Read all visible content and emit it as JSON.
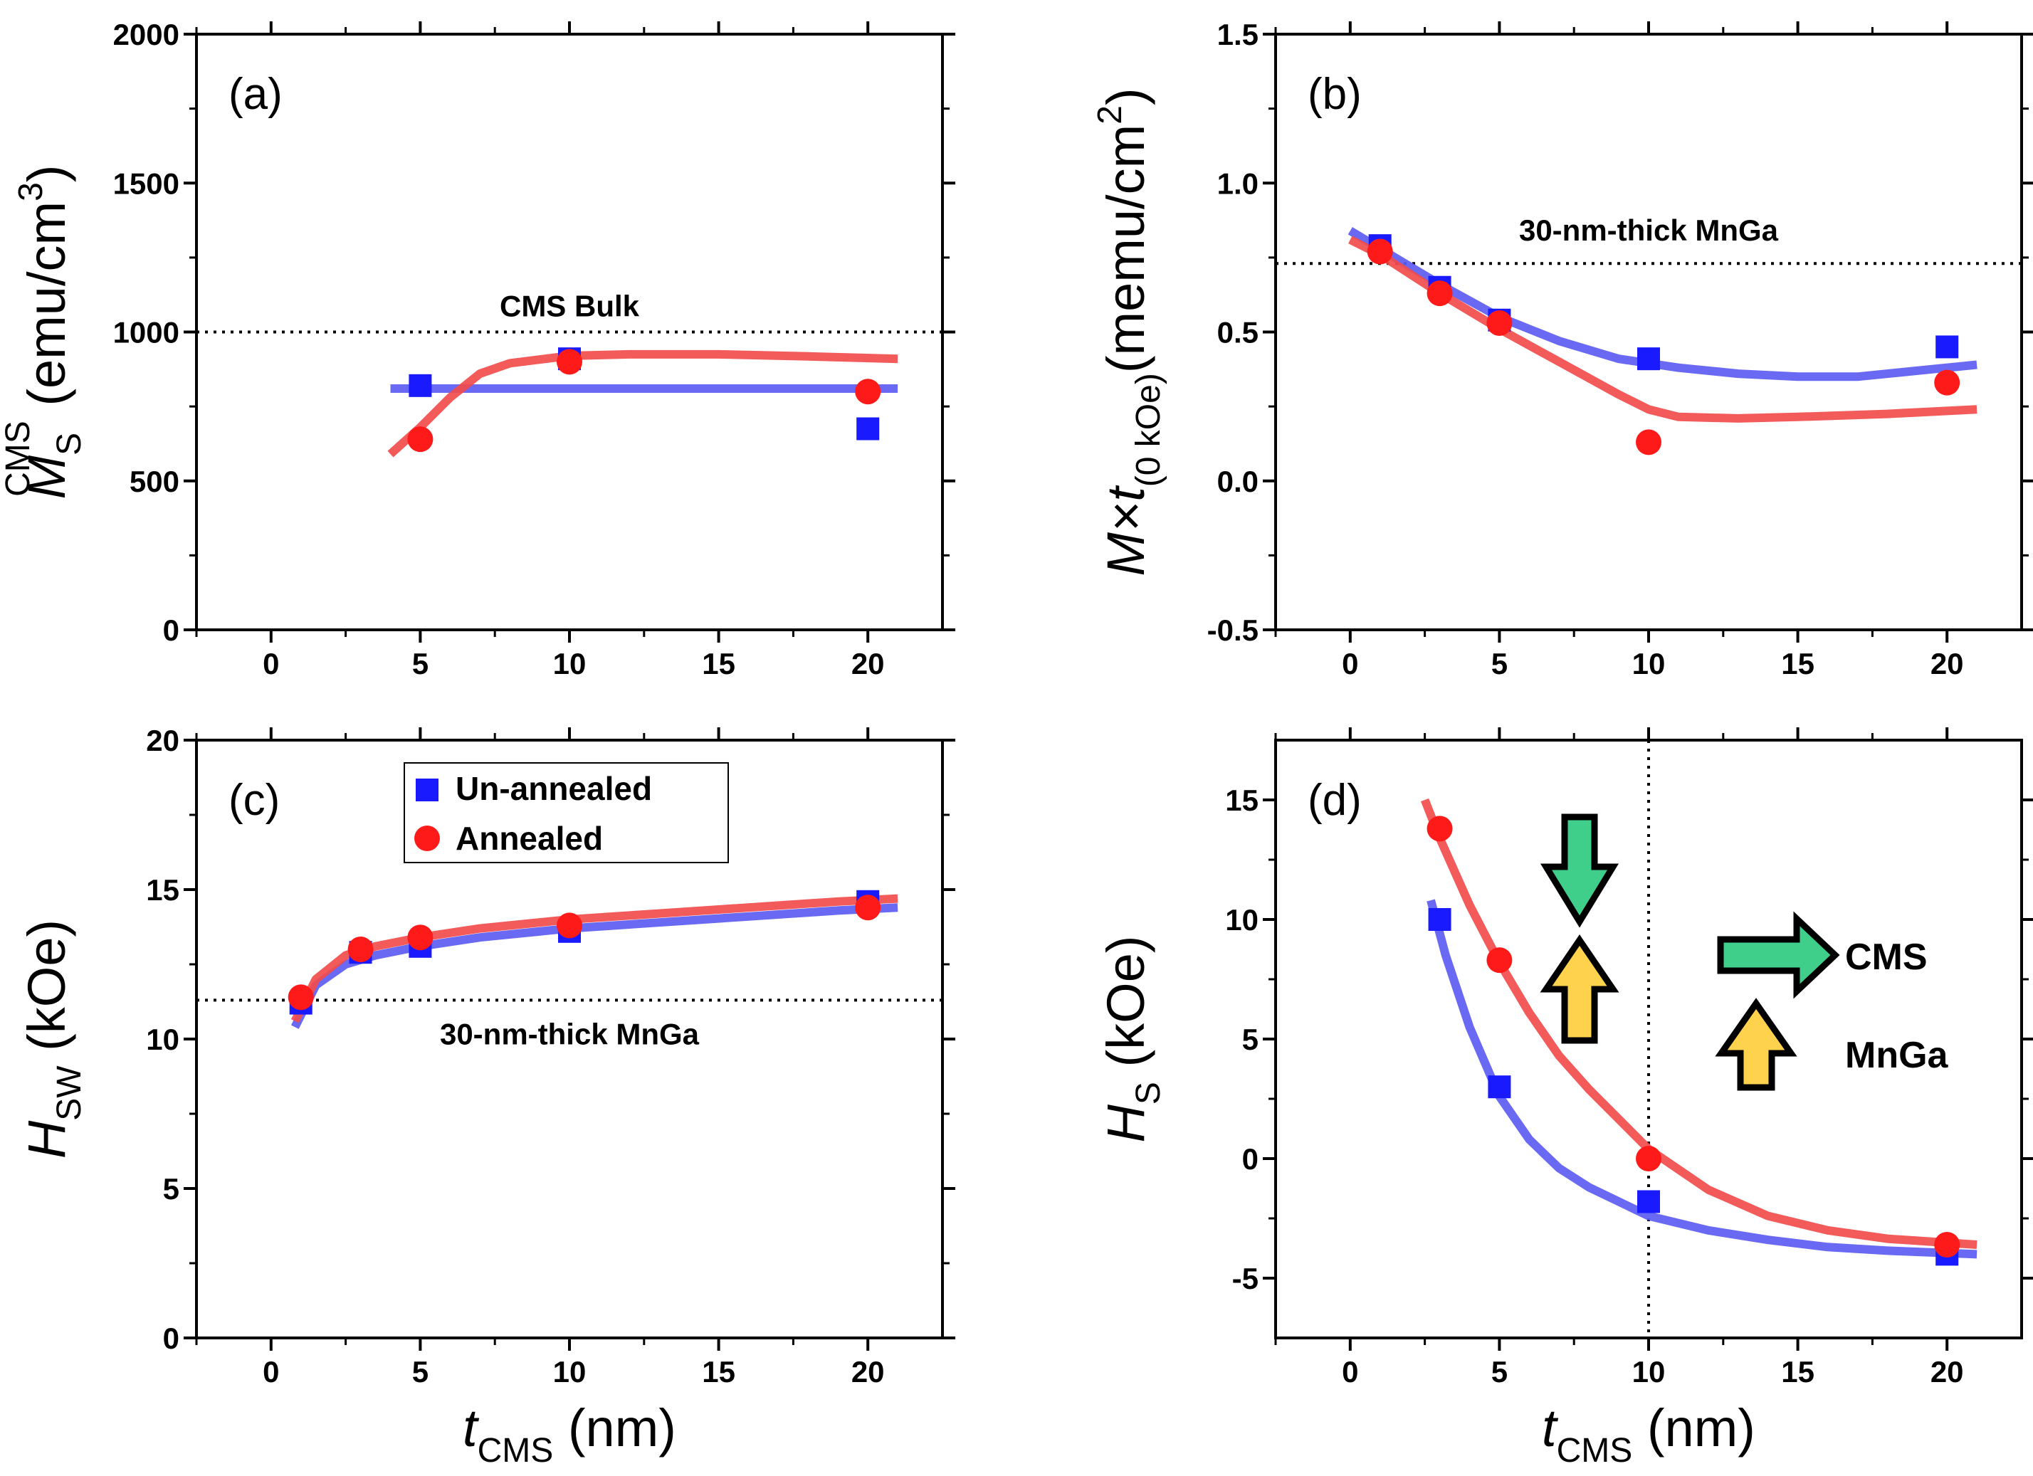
{
  "colors": {
    "unannealed": "#1a1aff",
    "annealed": "#ff1a1a",
    "fit_unannealed": "#5c5cf2",
    "fit_annealed": "#f24c4c",
    "arrow_green": "#3fcf8a",
    "arrow_yellow": "#ffd24d"
  },
  "legend": {
    "unannealed_label": "Un-annealed",
    "annealed_label": "Annealed"
  },
  "chart_data": [
    {
      "id": "a",
      "type": "scatter",
      "panel_label": "(a)",
      "xlim": [
        -2.5,
        22.5
      ],
      "ylim": [
        0,
        2000
      ],
      "xticks": [
        "0",
        "5",
        "10",
        "15",
        "20"
      ],
      "xtick_values": [
        0,
        5,
        10,
        15,
        20
      ],
      "yticks": [
        "0",
        "500",
        "1000",
        "1500",
        "2000"
      ],
      "ytick_values": [
        0,
        500,
        1000,
        1500,
        2000
      ],
      "ylabel": {
        "main": "M",
        "sub": "S",
        "sup": "CMS",
        "unit": " (emu/cm",
        "unit_sup": "3",
        "unit_close": ")"
      },
      "reference": {
        "y": 1000,
        "label": "CMS Bulk"
      },
      "series": [
        {
          "name": "Un-annealed",
          "marker": "square",
          "x": [
            5,
            10,
            20
          ],
          "y": [
            820,
            910,
            675
          ]
        },
        {
          "name": "Annealed",
          "marker": "circle",
          "x": [
            5,
            10,
            20
          ],
          "y": [
            640,
            900,
            800
          ]
        }
      ],
      "fits": [
        {
          "name": "Un-annealed",
          "x": [
            4,
            21
          ],
          "y": [
            810,
            810
          ]
        },
        {
          "name": "Annealed",
          "x": [
            4,
            5,
            6,
            7,
            8,
            10,
            12,
            15,
            18,
            21
          ],
          "y": [
            590,
            680,
            780,
            860,
            895,
            920,
            925,
            925,
            918,
            910
          ]
        }
      ]
    },
    {
      "id": "b",
      "type": "scatter",
      "panel_label": "(b)",
      "xlim": [
        -2.5,
        22.5
      ],
      "ylim": [
        -0.5,
        1.5
      ],
      "xticks": [
        "0",
        "5",
        "10",
        "15",
        "20"
      ],
      "xtick_values": [
        0,
        5,
        10,
        15,
        20
      ],
      "yticks": [
        "-0.5",
        "0.0",
        "0.5",
        "1.0",
        "1.5"
      ],
      "ytick_values": [
        -0.5,
        0.0,
        0.5,
        1.0,
        1.5
      ],
      "ylabel": {
        "main": "M×t",
        "sub": "(0 kOe)",
        "unit": "(memu/cm",
        "unit_sup": "2",
        "unit_close": ")"
      },
      "reference": {
        "y": 0.73,
        "label": "30-nm-thick MnGa"
      },
      "series": [
        {
          "name": "Un-annealed",
          "marker": "square",
          "x": [
            1,
            3,
            5,
            10,
            20
          ],
          "y": [
            0.79,
            0.65,
            0.54,
            0.41,
            0.45
          ]
        },
        {
          "name": "Annealed",
          "marker": "circle",
          "x": [
            1,
            3,
            5,
            10,
            20
          ],
          "y": [
            0.77,
            0.63,
            0.53,
            0.13,
            0.33
          ]
        }
      ],
      "fits": [
        {
          "name": "Un-annealed",
          "x": [
            0,
            1,
            3,
            5,
            7,
            9,
            11,
            13,
            15,
            17,
            19,
            21
          ],
          "y": [
            0.84,
            0.78,
            0.66,
            0.55,
            0.47,
            0.41,
            0.38,
            0.36,
            0.35,
            0.35,
            0.37,
            0.39
          ]
        },
        {
          "name": "Annealed",
          "x": [
            0,
            1,
            3,
            5,
            7,
            9,
            10,
            11,
            13,
            15,
            18,
            21
          ],
          "y": [
            0.81,
            0.76,
            0.63,
            0.51,
            0.4,
            0.29,
            0.24,
            0.215,
            0.21,
            0.215,
            0.225,
            0.24
          ]
        }
      ]
    },
    {
      "id": "c",
      "type": "scatter",
      "panel_label": "(c)",
      "xlim": [
        -2.5,
        22.5
      ],
      "ylim": [
        0,
        20
      ],
      "xticks": [
        "0",
        "5",
        "10",
        "15",
        "20"
      ],
      "xtick_values": [
        0,
        5,
        10,
        15,
        20
      ],
      "yticks": [
        "0",
        "5",
        "10",
        "15",
        "20"
      ],
      "ytick_values": [
        0,
        5,
        10,
        15,
        20
      ],
      "xlabel": {
        "main": "t",
        "sub": "CMS",
        "unit": " (nm)"
      },
      "ylabel": {
        "main": "H",
        "sub": "SW",
        "unit": " (kOe)"
      },
      "reference": {
        "y": 11.3,
        "label": "30-nm-thick MnGa"
      },
      "series": [
        {
          "name": "Un-annealed",
          "marker": "square",
          "x": [
            1,
            3,
            5,
            10,
            20
          ],
          "y": [
            11.2,
            12.9,
            13.1,
            13.6,
            14.6
          ]
        },
        {
          "name": "Annealed",
          "marker": "circle",
          "x": [
            1,
            3,
            5,
            10,
            20
          ],
          "y": [
            11.4,
            13.0,
            13.4,
            13.8,
            14.4
          ]
        }
      ],
      "fits": [
        {
          "name": "Un-annealed",
          "x": [
            0.8,
            1.5,
            2.5,
            3.5,
            5,
            7,
            10,
            13,
            16,
            19,
            21
          ],
          "y": [
            10.4,
            11.8,
            12.5,
            12.8,
            13.1,
            13.4,
            13.7,
            13.9,
            14.1,
            14.3,
            14.4
          ]
        },
        {
          "name": "Annealed",
          "x": [
            0.8,
            1.5,
            2.5,
            3.5,
            5,
            7,
            10,
            13,
            16,
            19,
            21
          ],
          "y": [
            10.6,
            12.0,
            12.8,
            13.1,
            13.4,
            13.7,
            14.0,
            14.2,
            14.4,
            14.6,
            14.7
          ]
        }
      ],
      "legend_position": "top-center"
    },
    {
      "id": "d",
      "type": "scatter",
      "panel_label": "(d)",
      "xlim": [
        -2.5,
        22.5
      ],
      "ylim": [
        -7.5,
        17.5
      ],
      "xticks": [
        "0",
        "5",
        "10",
        "15",
        "20"
      ],
      "xtick_values": [
        0,
        5,
        10,
        15,
        20
      ],
      "yticks": [
        "-5",
        "0",
        "5",
        "10",
        "15"
      ],
      "ytick_values": [
        -5,
        0,
        5,
        10,
        15
      ],
      "xlabel": {
        "main": "t",
        "sub": "CMS",
        "unit": " (nm)"
      },
      "ylabel": {
        "main": "H",
        "sub": "S",
        "unit": " (kOe)"
      },
      "vline": {
        "x": 10
      },
      "annotations": {
        "cms": "CMS",
        "mnga": "MnGa"
      },
      "series": [
        {
          "name": "Un-annealed",
          "marker": "square",
          "x": [
            3,
            5,
            10,
            20
          ],
          "y": [
            10.0,
            3.0,
            -1.8,
            -4.0
          ]
        },
        {
          "name": "Annealed",
          "marker": "circle",
          "x": [
            3,
            5,
            10,
            20
          ],
          "y": [
            13.8,
            8.3,
            0.0,
            -3.6
          ]
        }
      ],
      "fits": [
        {
          "name": "Un-annealed",
          "x": [
            2.7,
            3.2,
            4,
            5,
            6,
            7,
            8,
            10,
            12,
            14,
            16,
            18,
            21
          ],
          "y": [
            10.8,
            8.5,
            5.5,
            2.6,
            0.8,
            -0.4,
            -1.2,
            -2.4,
            -3.0,
            -3.4,
            -3.7,
            -3.85,
            -4.0
          ]
        },
        {
          "name": "Annealed",
          "x": [
            2.5,
            3,
            4,
            5,
            6,
            7,
            8,
            10,
            12,
            14,
            16,
            18,
            21
          ],
          "y": [
            15.0,
            13.4,
            10.6,
            8.2,
            6.1,
            4.3,
            2.9,
            0.4,
            -1.3,
            -2.4,
            -3.0,
            -3.35,
            -3.6
          ]
        }
      ]
    }
  ]
}
